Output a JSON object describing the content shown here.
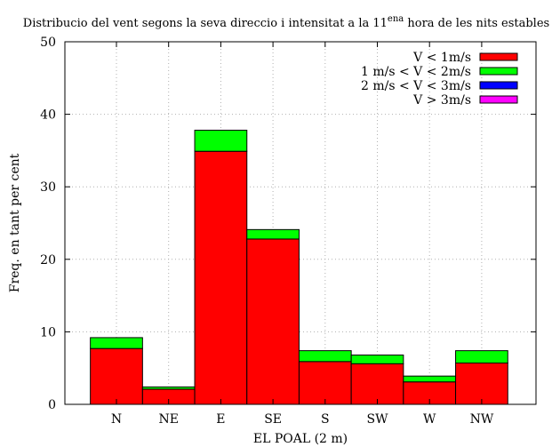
{
  "chart_data": {
    "type": "bar",
    "stacked": true,
    "title_main": "Distribucio del vent segons la seva direccio i intensitat a la 11",
    "title_sup": "ena",
    "title_end": " hora de les nits estables",
    "xlabel": "EL POAL (2 m)",
    "ylabel": "Freq. en tant per cent",
    "ylim": [
      0,
      50
    ],
    "yticks": [
      0,
      10,
      20,
      30,
      40,
      50
    ],
    "grid": true,
    "legend_position": "top-right",
    "categories": [
      "N",
      "NE",
      "E",
      "SE",
      "S",
      "SW",
      "W",
      "NW"
    ],
    "series": [
      {
        "name": "V < 1m/s",
        "color": "#ff0000",
        "values": [
          7.7,
          2.1,
          34.9,
          22.8,
          5.9,
          5.6,
          3.1,
          5.7
        ]
      },
      {
        "name": "1 m/s < V < 2m/s",
        "color": "#00ff00",
        "values": [
          1.5,
          0.3,
          2.9,
          1.3,
          1.5,
          1.2,
          0.8,
          1.7
        ]
      },
      {
        "name": "2 m/s < V < 3m/s",
        "color": "#0000ff",
        "values": [
          0.0,
          0.0,
          0.0,
          0.0,
          0.0,
          0.0,
          0.0,
          0.0
        ]
      },
      {
        "name": "V > 3m/s",
        "color": "#ff00ff",
        "values": [
          0.0,
          0.0,
          0.0,
          0.0,
          0.0,
          0.0,
          0.0,
          0.0
        ]
      }
    ]
  }
}
